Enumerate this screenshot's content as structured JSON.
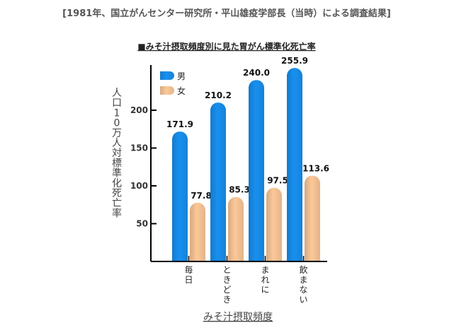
{
  "source_title": "[1981年、国立がんセンター研究所・平山雄疫学部長（当時）による調査結果]",
  "chart_data": {
    "type": "bar",
    "title": "■みそ汁摂取頻度別に見た胃がん標準化死亡率",
    "xlabel": "みそ汁摂取頻度",
    "ylabel": "人口10万人対標準化死亡率",
    "ylim": [
      0,
      260
    ],
    "yticks": [
      50,
      100,
      150,
      200
    ],
    "ytick_labels": [
      "50",
      "100",
      "150",
      "200"
    ],
    "categories": [
      "毎日",
      "ときどき",
      "まれに",
      "飲まない"
    ],
    "series": [
      {
        "name": "男",
        "values": [
          171.9,
          210.2,
          240.0,
          255.9
        ],
        "labels": [
          "171.9",
          "210.2",
          "240.0",
          "255.9"
        ],
        "color": "#1890f0"
      },
      {
        "name": "女",
        "values": [
          77.8,
          85.3,
          97.5,
          113.6
        ],
        "labels": [
          "77.8",
          "85.3",
          "97.5",
          "113.6"
        ],
        "color": "#fcc898"
      }
    ],
    "legend_position": "top-left",
    "grid": false
  }
}
